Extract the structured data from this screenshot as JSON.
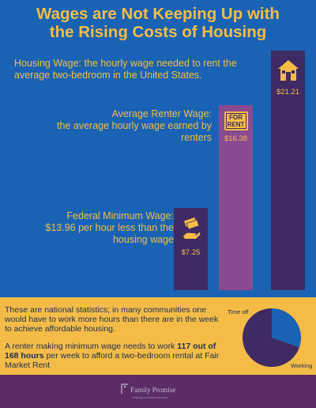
{
  "title_line1": "Wages are Not Keeping Up with",
  "title_line2": "the Rising Costs of Housing",
  "descriptions": {
    "housing": "Housing Wage:  the hourly wage needed to rent the average two-bedroom in the United States.",
    "renter_line1": "Average Renter Wage:",
    "renter_line2": "the average hourly wage earned by renters",
    "minimum_line1": "Federal Minimum Wage:",
    "minimum_line2": "$13.96 per hour less than the housing wage"
  },
  "icons": {
    "housing": "house-icon",
    "renter": "for-rent-sign-icon",
    "renter_sign_text": "FOR RENT",
    "minimum": "hand-holding-money-icon"
  },
  "colors": {
    "background": "#1a63b4",
    "accent": "#f5bd45",
    "bar_housing": "#3f2a63",
    "bar_renter": "#8a4a92",
    "bar_minimum": "#3f2a63",
    "panel": "#f4bc47",
    "footer": "#5b2c66",
    "pie_off": "#1a63b4",
    "pie_working": "#3f2a63"
  },
  "chart_data": [
    {
      "type": "bar",
      "categories": [
        "Federal Minimum Wage",
        "Average Renter Wage",
        "Housing Wage"
      ],
      "values": [
        7.25,
        16.38,
        21.21
      ],
      "value_labels": [
        "$7.25",
        "$16.38",
        "$21.21"
      ],
      "ylim": [
        0,
        21.21
      ]
    },
    {
      "type": "pie",
      "labels": [
        "Time off",
        "Working"
      ],
      "values": [
        51,
        117
      ]
    }
  ],
  "panel": {
    "stat1": "These are national statistics; in many communities one would have to work more hours than there are in the week to achieve affordable housing.",
    "stat2_pre": "A renter making minimum wage needs to work ",
    "stat2_bold": "117 out of 168 hours",
    "stat2_post": " per week to afford a two-bedroom rental at  Fair Market Rent",
    "pie_label_off": "Time off",
    "pie_label_working": "Working"
  },
  "footer": {
    "logo_name": "Family Promise",
    "logo_tagline": "Helping homeless families"
  }
}
